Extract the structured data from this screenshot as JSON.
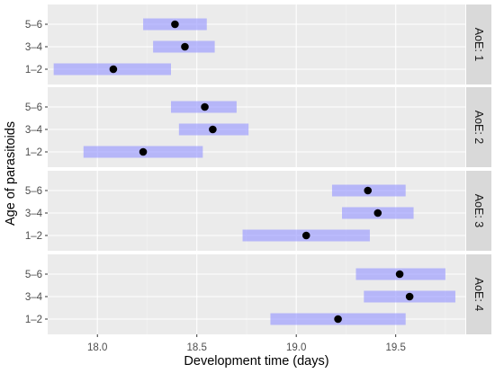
{
  "chart_data": {
    "type": "scatter",
    "xlabel": "Development time (days)",
    "ylabel": "Age of parasitoids",
    "categories": [
      "1–2",
      "3–4",
      "5–6"
    ],
    "xlim": [
      17.75,
      19.85
    ],
    "xticks": [
      18.0,
      18.5,
      19.0,
      19.5
    ],
    "xtick_labels": [
      "18.0",
      "18.5",
      "19.0",
      "19.5"
    ],
    "grid": true,
    "colors": {
      "interval": "#9999ff",
      "point": "#000000",
      "panel": "#ebebeb",
      "strip": "#d9d9d9"
    },
    "panels": [
      {
        "strip": "AoE: 1",
        "rows": [
          {
            "age": "1–2",
            "mean": 18.08,
            "low": 17.78,
            "high": 18.37
          },
          {
            "age": "3–4",
            "mean": 18.44,
            "low": 18.28,
            "high": 18.59
          },
          {
            "age": "5–6",
            "mean": 18.39,
            "low": 18.23,
            "high": 18.55
          }
        ]
      },
      {
        "strip": "AoE: 2",
        "rows": [
          {
            "age": "1–2",
            "mean": 18.23,
            "low": 17.93,
            "high": 18.53
          },
          {
            "age": "3–4",
            "mean": 18.58,
            "low": 18.41,
            "high": 18.76
          },
          {
            "age": "5–6",
            "mean": 18.54,
            "low": 18.37,
            "high": 18.7
          }
        ]
      },
      {
        "strip": "AoE: 3",
        "rows": [
          {
            "age": "1–2",
            "mean": 19.05,
            "low": 18.73,
            "high": 19.37
          },
          {
            "age": "3–4",
            "mean": 19.41,
            "low": 19.23,
            "high": 19.59
          },
          {
            "age": "5–6",
            "mean": 19.36,
            "low": 19.18,
            "high": 19.55
          }
        ]
      },
      {
        "strip": "AoE: 4",
        "rows": [
          {
            "age": "1–2",
            "mean": 19.21,
            "low": 18.87,
            "high": 19.55
          },
          {
            "age": "3–4",
            "mean": 19.57,
            "low": 19.34,
            "high": 19.8
          },
          {
            "age": "5–6",
            "mean": 19.52,
            "low": 19.3,
            "high": 19.75
          }
        ]
      }
    ]
  }
}
